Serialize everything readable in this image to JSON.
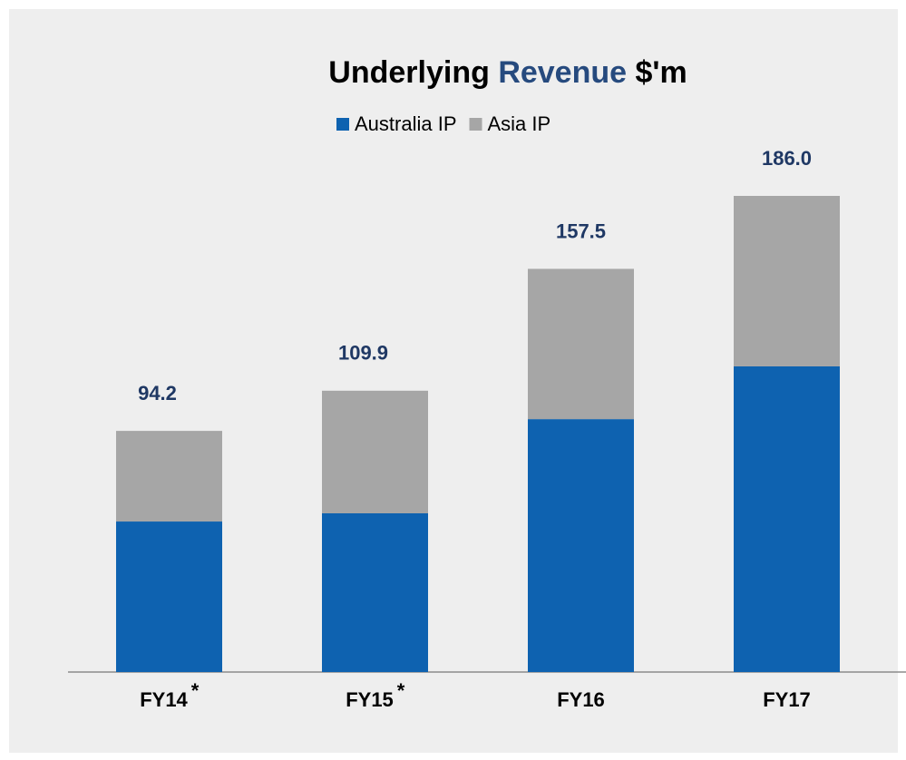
{
  "chart_data": {
    "type": "stacked_bar",
    "title": [
      "Underlying ",
      "Revenue",
      " $'m"
    ],
    "title_highlight": 1,
    "title_highlight_color": "#264a7e",
    "categories": [
      "FY14",
      "FY15",
      "FY16",
      "FY17"
    ],
    "category_notes": [
      "*",
      "*",
      null,
      null
    ],
    "series": [
      {
        "name": "Australia IP",
        "color": "#0e62b0",
        "values": [
          58.8,
          62.0,
          98.8,
          119.4
        ]
      },
      {
        "name": "Asia IP",
        "color": "#a6a6a6",
        "values": [
          35.4,
          47.9,
          58.7,
          66.6
        ]
      }
    ],
    "totals": [
      94.2,
      109.9,
      157.5,
      186.0
    ],
    "totals_labels": [
      "94.2",
      "109.9",
      "157.5",
      "186.0"
    ],
    "totals_color": "#1f3864",
    "legend": "top"
  }
}
